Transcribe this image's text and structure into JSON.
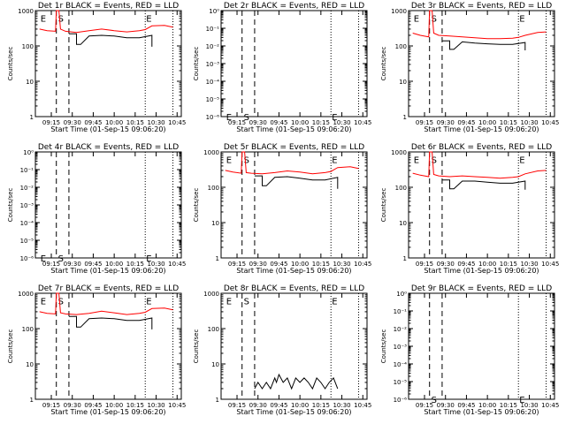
{
  "figure": {
    "ylabel": "Counts/sec",
    "xlabel": "Start Time (01-Sep-15 09:06:20)",
    "xticks": [
      "09:15",
      "09:30",
      "09:45",
      "10:00",
      "10:15",
      "10:30",
      "10:45"
    ]
  },
  "chart_data": [
    {
      "type": "line",
      "title": "Det 1r BLACK = Events, RED = LLD",
      "scale": "log",
      "ylim": [
        1,
        1000
      ],
      "yticks": [
        "1",
        "10",
        "100",
        "1000"
      ],
      "markers": [
        {
          "label": "E",
          "x": 9.11,
          "y": 0.97
        },
        {
          "label": "S",
          "x": 9.32,
          "y": 0.97
        },
        {
          "label": "E",
          "x": 10.37,
          "y": 0.97
        }
      ],
      "series": [
        {
          "name": "RED",
          "color": "#ff0000",
          "x": [
            9.11,
            9.2,
            9.3,
            9.31,
            9.34,
            9.36,
            9.42,
            9.55,
            9.7,
            9.85,
            10.0,
            10.15,
            10.3,
            10.37,
            10.45,
            10.6,
            10.7
          ],
          "y": [
            300,
            270,
            260,
            1000,
            1000,
            300,
            260,
            240,
            270,
            300,
            270,
            250,
            270,
            290,
            370,
            380,
            340
          ]
        },
        {
          "name": "BLACK",
          "color": "#000000",
          "x": [
            9.46,
            9.5,
            9.55,
            9.55,
            9.6,
            9.7,
            9.85,
            10.0,
            10.15,
            10.3,
            10.45,
            10.45
          ],
          "y": [
            220,
            220,
            220,
            110,
            110,
            190,
            200,
            190,
            170,
            170,
            200,
            95
          ]
        }
      ]
    },
    {
      "type": "line",
      "title": "Det 2r BLACK = Events, RED = LLD",
      "scale": "log",
      "ylim": [
        1e-06,
        1
      ],
      "yticks": [
        "10⁻⁶",
        "10⁻⁵",
        "10⁻⁴",
        "10⁻³",
        "10⁻²",
        "10⁻¹",
        "10⁰"
      ],
      "markers": [
        {
          "label": "E",
          "x": 9.11,
          "y": 0.04
        },
        {
          "label": "S",
          "x": 9.32,
          "y": 0.04
        },
        {
          "label": "E",
          "x": 10.37,
          "y": 0.04
        }
      ],
      "series": []
    },
    {
      "type": "line",
      "title": "Det 3r BLACK = Events, RED = LLD",
      "scale": "log",
      "ylim": [
        1,
        1000
      ],
      "yticks": [
        "1",
        "10",
        "100",
        "1000"
      ],
      "markers": [
        {
          "label": "E",
          "x": 9.11,
          "y": 0.97
        },
        {
          "label": "S",
          "x": 9.32,
          "y": 0.97
        },
        {
          "label": "E",
          "x": 10.37,
          "y": 0.97
        }
      ],
      "series": [
        {
          "name": "RED",
          "color": "#ff0000",
          "x": [
            9.11,
            9.2,
            9.3,
            9.31,
            9.34,
            9.36,
            9.42,
            9.55,
            9.7,
            9.85,
            10.0,
            10.15,
            10.3,
            10.37,
            10.45,
            10.6,
            10.7
          ],
          "y": [
            230,
            200,
            180,
            1000,
            1000,
            230,
            200,
            190,
            180,
            170,
            160,
            160,
            165,
            175,
            200,
            240,
            250
          ]
        },
        {
          "name": "BLACK",
          "color": "#000000",
          "x": [
            9.46,
            9.5,
            9.55,
            9.55,
            9.6,
            9.7,
            9.85,
            10.0,
            10.15,
            10.3,
            10.45,
            10.45
          ],
          "y": [
            140,
            140,
            140,
            80,
            80,
            130,
            120,
            115,
            110,
            110,
            125,
            75
          ]
        }
      ]
    },
    {
      "type": "line",
      "title": "Det 4r BLACK = Events, RED = LLD",
      "scale": "log",
      "ylim": [
        1e-06,
        1
      ],
      "yticks": [
        "10⁻⁶",
        "10⁻⁵",
        "10⁻⁴",
        "10⁻³",
        "10⁻²",
        "10⁻¹",
        "10⁰"
      ],
      "markers": [
        {
          "label": "E",
          "x": 9.11,
          "y": 0.04
        },
        {
          "label": "S",
          "x": 9.32,
          "y": 0.04
        },
        {
          "label": "E",
          "x": 10.37,
          "y": 0.04
        }
      ],
      "series": []
    },
    {
      "type": "line",
      "title": "Det 5r BLACK = Events, RED = LLD",
      "scale": "log",
      "ylim": [
        1,
        1000
      ],
      "yticks": [
        "1",
        "10",
        "100",
        "1000"
      ],
      "markers": [
        {
          "label": "E",
          "x": 9.11,
          "y": 0.97
        },
        {
          "label": "S",
          "x": 9.32,
          "y": 0.97
        },
        {
          "label": "E",
          "x": 10.37,
          "y": 0.97
        }
      ],
      "series": [
        {
          "name": "RED",
          "color": "#ff0000",
          "x": [
            9.11,
            9.2,
            9.3,
            9.31,
            9.34,
            9.36,
            9.42,
            9.55,
            9.7,
            9.85,
            10.0,
            10.15,
            10.3,
            10.37,
            10.45,
            10.6,
            10.7
          ],
          "y": [
            300,
            270,
            250,
            1000,
            1000,
            260,
            250,
            240,
            260,
            290,
            270,
            240,
            260,
            280,
            360,
            380,
            340
          ]
        },
        {
          "name": "BLACK",
          "color": "#000000",
          "x": [
            9.46,
            9.5,
            9.55,
            9.55,
            9.6,
            9.7,
            9.85,
            10.0,
            10.15,
            10.3,
            10.45,
            10.45
          ],
          "y": [
            210,
            210,
            210,
            110,
            110,
            190,
            200,
            180,
            160,
            160,
            190,
            90
          ]
        }
      ]
    },
    {
      "type": "line",
      "title": "Det 6r BLACK = Events, RED = LLD",
      "scale": "log",
      "ylim": [
        1,
        1000
      ],
      "yticks": [
        "1",
        "10",
        "100",
        "1000"
      ],
      "markers": [
        {
          "label": "E",
          "x": 9.11,
          "y": 0.97
        },
        {
          "label": "S",
          "x": 9.32,
          "y": 0.97
        },
        {
          "label": "E",
          "x": 10.37,
          "y": 0.97
        }
      ],
      "series": [
        {
          "name": "RED",
          "color": "#ff0000",
          "x": [
            9.11,
            9.2,
            9.3,
            9.31,
            9.34,
            9.36,
            9.42,
            9.55,
            9.7,
            9.85,
            10.0,
            10.15,
            10.3,
            10.37,
            10.45,
            10.6,
            10.7
          ],
          "y": [
            250,
            220,
            200,
            1000,
            1000,
            230,
            210,
            200,
            210,
            200,
            190,
            180,
            190,
            200,
            240,
            290,
            300
          ]
        },
        {
          "name": "BLACK",
          "color": "#000000",
          "x": [
            9.46,
            9.5,
            9.55,
            9.55,
            9.6,
            9.7,
            9.85,
            10.0,
            10.15,
            10.3,
            10.45,
            10.45
          ],
          "y": [
            160,
            160,
            160,
            90,
            90,
            150,
            150,
            140,
            130,
            130,
            150,
            85
          ]
        }
      ]
    },
    {
      "type": "line",
      "title": "Det 7r BLACK = Events, RED = LLD",
      "scale": "log",
      "ylim": [
        1,
        1000
      ],
      "yticks": [
        "1",
        "10",
        "100",
        "1000"
      ],
      "markers": [
        {
          "label": "E",
          "x": 9.11,
          "y": 0.97
        },
        {
          "label": "S",
          "x": 9.32,
          "y": 0.97
        },
        {
          "label": "E",
          "x": 10.37,
          "y": 0.97
        }
      ],
      "series": [
        {
          "name": "RED",
          "color": "#ff0000",
          "x": [
            9.11,
            9.2,
            9.3,
            9.31,
            9.34,
            9.36,
            9.42,
            9.55,
            9.7,
            9.85,
            10.0,
            10.15,
            10.3,
            10.37,
            10.45,
            10.6,
            10.7
          ],
          "y": [
            300,
            270,
            260,
            1000,
            1000,
            280,
            260,
            250,
            270,
            310,
            280,
            250,
            270,
            290,
            370,
            380,
            340
          ]
        },
        {
          "name": "BLACK",
          "color": "#000000",
          "x": [
            9.46,
            9.5,
            9.55,
            9.55,
            9.6,
            9.7,
            9.85,
            10.0,
            10.15,
            10.3,
            10.45,
            10.45
          ],
          "y": [
            220,
            220,
            220,
            110,
            110,
            190,
            200,
            190,
            170,
            170,
            200,
            95
          ]
        }
      ]
    },
    {
      "type": "line",
      "title": "Det 8r BLACK = Events, RED = LLD",
      "scale": "log",
      "ylim": [
        1,
        1000
      ],
      "yticks": [
        "1",
        "10",
        "100",
        "1000"
      ],
      "markers": [
        {
          "label": "E",
          "x": 9.11,
          "y": 0.97
        },
        {
          "label": "S",
          "x": 9.32,
          "y": 0.97
        },
        {
          "label": "E",
          "x": 10.37,
          "y": 0.97
        }
      ],
      "series": [
        {
          "name": "BLACK",
          "color": "#000000",
          "x": [
            9.46,
            9.5,
            9.55,
            9.6,
            9.65,
            9.7,
            9.72,
            9.75,
            9.8,
            9.85,
            9.9,
            9.95,
            10.0,
            10.05,
            10.1,
            10.15,
            10.2,
            10.25,
            10.3,
            10.35,
            10.4,
            10.45
          ],
          "y": [
            2,
            3,
            2,
            3,
            2,
            4,
            3,
            5,
            3,
            4,
            2,
            4,
            3,
            4,
            3,
            2,
            4,
            3,
            2,
            3,
            4,
            2
          ]
        }
      ]
    },
    {
      "type": "line",
      "title": "Det 9r BLACK = Events, RED = LLD",
      "scale": "log",
      "ylim": [
        1e-06,
        1
      ],
      "yticks": [
        "10⁻⁶",
        "10⁻⁵",
        "10⁻⁴",
        "10⁻³",
        "10⁻²",
        "10⁻¹",
        "10⁰"
      ],
      "markers": [
        {
          "label": "S",
          "x": 9.32,
          "y": 0.04
        },
        {
          "label": "E",
          "x": 10.37,
          "y": 0.04
        }
      ],
      "series": []
    }
  ]
}
